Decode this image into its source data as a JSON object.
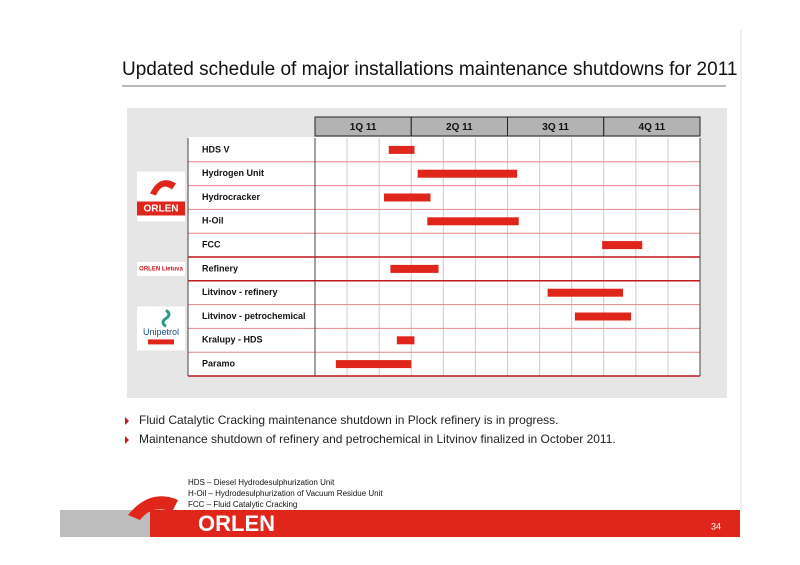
{
  "chart_data": {
    "type": "gantt",
    "title": "Updated schedule of major installations maintenance shutdowns for 2011",
    "quarters": [
      "1Q 11",
      "2Q 11",
      "3Q 11",
      "4Q 11"
    ],
    "xlim": [
      0,
      12
    ],
    "color": "#e0251b",
    "groups": [
      {
        "logo": "ORLEN",
        "rows": [
          0,
          1,
          2,
          3,
          4
        ]
      },
      {
        "logo": "ORLEN Lietuva",
        "rows": [
          5
        ]
      },
      {
        "logo": "Unipetrol",
        "rows": [
          6,
          7,
          8,
          9
        ]
      }
    ],
    "tasks": [
      {
        "label": "HDS V",
        "values": [
          2.3,
          3.1
        ]
      },
      {
        "label": "Hydrogen Unit",
        "values": [
          3.2,
          6.3
        ]
      },
      {
        "label": "Hydrocracker",
        "values": [
          2.15,
          3.6
        ]
      },
      {
        "label": "H-Oil",
        "values": [
          3.5,
          6.35
        ]
      },
      {
        "label": "FCC",
        "values": [
          8.95,
          10.2
        ]
      },
      {
        "label": "Refinery",
        "values": [
          2.35,
          3.85
        ]
      },
      {
        "label": "Litvinov - refinery",
        "values": [
          7.25,
          9.6
        ]
      },
      {
        "label": "Litvinov - petrochemical",
        "values": [
          8.1,
          9.85
        ]
      },
      {
        "label": "Kralupy - HDS",
        "values": [
          2.55,
          3.1
        ]
      },
      {
        "label": "Paramo",
        "values": [
          0.65,
          3.0
        ]
      }
    ],
    "bullets": [
      "Fluid Catalytic Cracking maintenance shutdown in Plock refinery is in progress.",
      "Maintenance shutdown of refinery and petrochemical in Litvinov finalized in October 2011."
    ],
    "footnotes": [
      "HDS – Diesel Hydrodesulphurization Unit",
      "H-Oil – Hydrodesulphurization of Vacuum Residue Unit",
      "FCC – Fluid Catalytic Cracking"
    ],
    "footer_logo": "ORLEN",
    "page_number": "34"
  }
}
